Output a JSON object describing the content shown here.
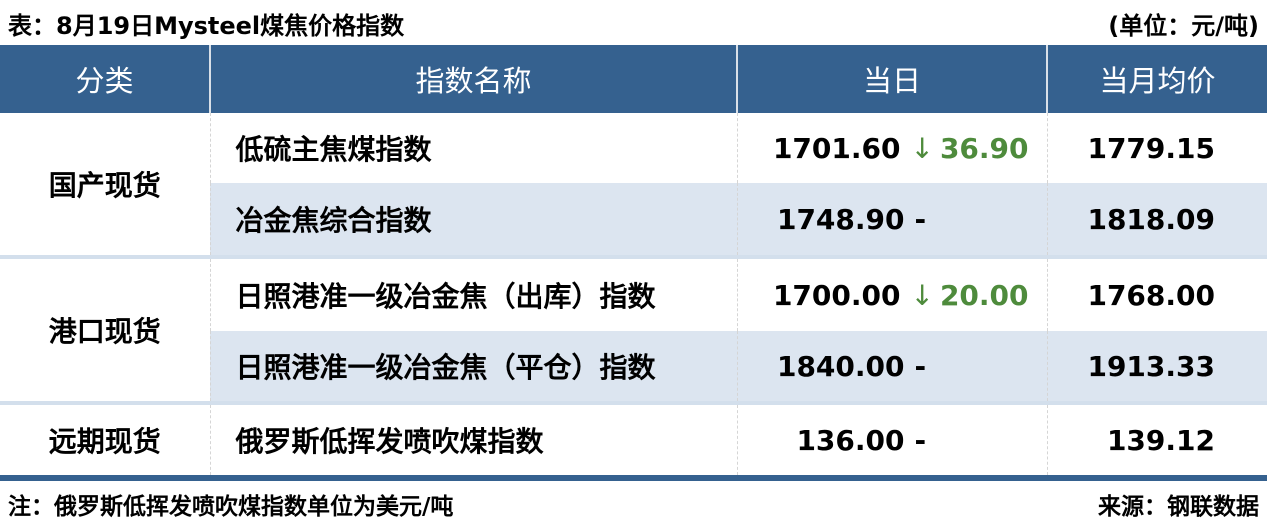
{
  "title": "表：8月19日Mysteel煤焦价格指数",
  "unit": "(单位：元/吨)",
  "icons": {
    "down_arrow": "↓"
  },
  "colors": {
    "header_bg": "#35618F",
    "row_alt_bg": "#DCE5F0",
    "divider": "#D3DFEC",
    "down_green": "#4E8B3C"
  },
  "table": {
    "headers": [
      "分类",
      "指数名称",
      "当日",
      "当月均价"
    ],
    "groups": [
      {
        "category": "国产现货",
        "rows": [
          {
            "name": "低硫主焦煤指数",
            "today": "1701.60",
            "change": "36.90",
            "direction": "down",
            "month_avg": "1779.15"
          },
          {
            "name": "冶金焦综合指数",
            "today": "1748.90",
            "change": "-",
            "direction": "none",
            "month_avg": "1818.09"
          }
        ]
      },
      {
        "category": "港口现货",
        "rows": [
          {
            "name": "日照港准一级冶金焦（出库）指数",
            "today": "1700.00",
            "change": "20.00",
            "direction": "down",
            "month_avg": "1768.00"
          },
          {
            "name": "日照港准一级冶金焦（平仓）指数",
            "today": "1840.00",
            "change": "-",
            "direction": "none",
            "month_avg": "1913.33"
          }
        ]
      },
      {
        "category": "远期现货",
        "rows": [
          {
            "name": "俄罗斯低挥发喷吹煤指数",
            "today": "136.00",
            "change": "-",
            "direction": "none",
            "month_avg": "139.12"
          }
        ]
      }
    ]
  },
  "footer": {
    "note": "注：俄罗斯低挥发喷吹煤指数单位为美元/吨",
    "source": "来源：钢联数据"
  }
}
